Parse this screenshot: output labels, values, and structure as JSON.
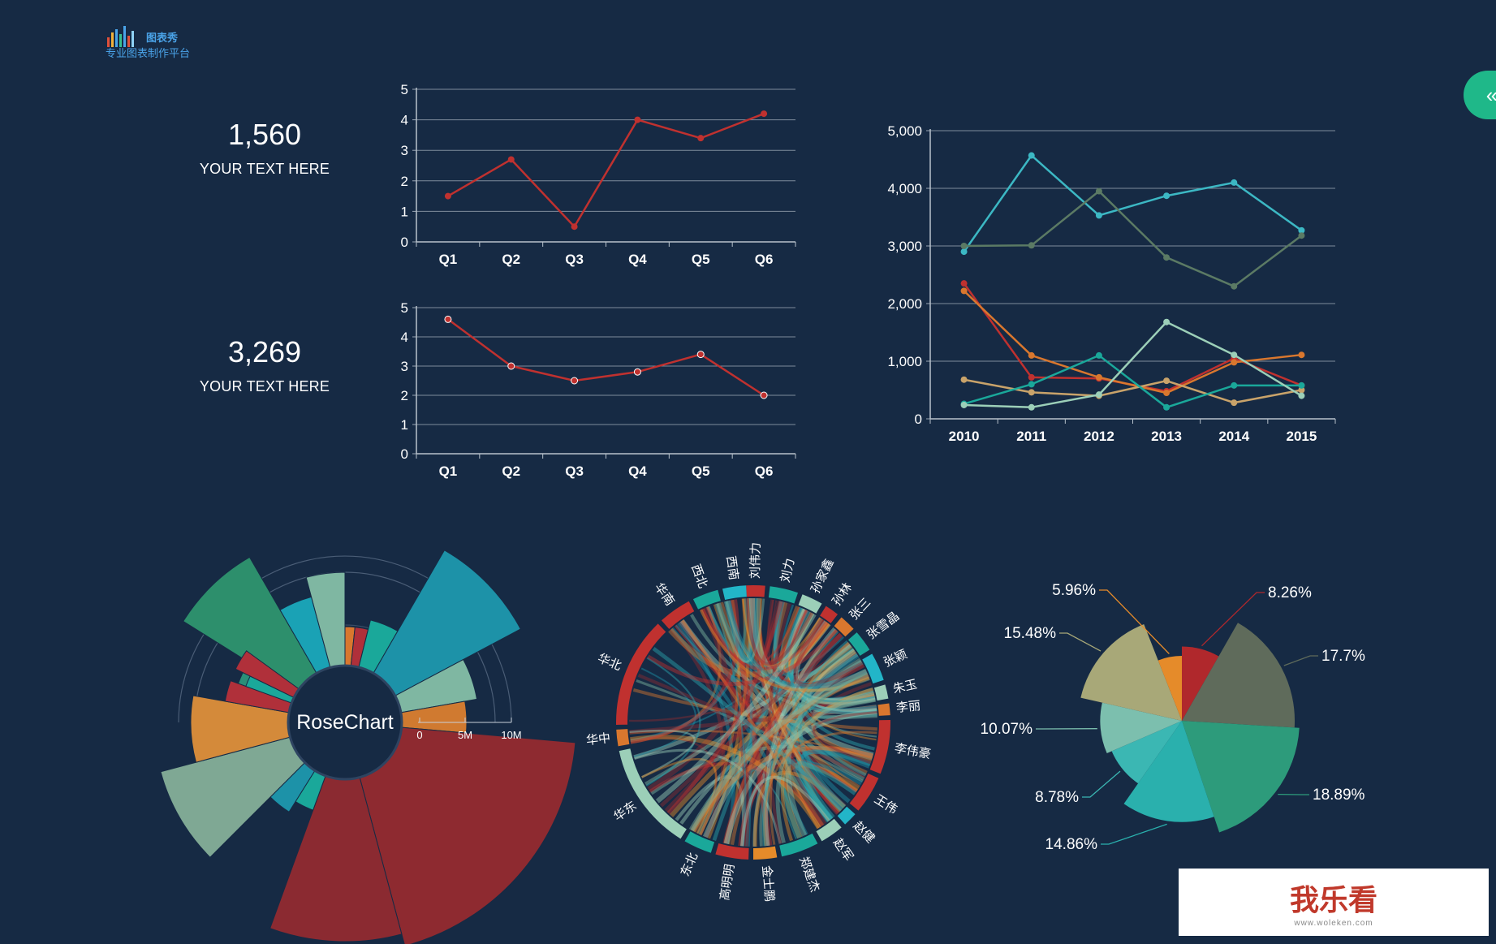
{
  "logo": {
    "line1": "图表秀",
    "line2": "专业图表制作平台"
  },
  "kpis": [
    {
      "value": "1,560",
      "label": "YOUR TEXT HERE"
    },
    {
      "value": "3,269",
      "label": "YOUR TEXT HERE"
    }
  ],
  "collapse_icon": "double-chevron-left-icon",
  "watermark": {
    "text": "我乐看",
    "sub": "www.woleken.com"
  },
  "chart_data": [
    {
      "type": "line",
      "categories": [
        "Q1",
        "Q2",
        "Q3",
        "Q4",
        "Q5",
        "Q6"
      ],
      "series": [
        {
          "values": [
            1.5,
            2.7,
            0.5,
            4.0,
            3.4,
            4.2
          ],
          "color": "#c0312f"
        }
      ],
      "ylim": [
        0,
        5
      ],
      "yticks": [
        0,
        1,
        2,
        3,
        4,
        5
      ],
      "grid": true
    },
    {
      "type": "line",
      "categories": [
        "Q1",
        "Q2",
        "Q3",
        "Q4",
        "Q5",
        "Q6"
      ],
      "series": [
        {
          "values": [
            4.6,
            3.0,
            2.5,
            2.8,
            3.4,
            2.0
          ],
          "color": "#c0312f"
        }
      ],
      "ylim": [
        0,
        5
      ],
      "yticks": [
        0,
        1,
        2,
        3,
        4,
        5
      ],
      "grid": true
    },
    {
      "type": "line",
      "categories": [
        "2010",
        "2011",
        "2012",
        "2013",
        "2014",
        "2015"
      ],
      "ylim": [
        0,
        5000
      ],
      "yticks": [
        0,
        1000,
        2000,
        3000,
        4000,
        5000
      ],
      "ytick_labels": [
        "0",
        "1,000",
        "2,000",
        "3,000",
        "4,000",
        "5,000"
      ],
      "grid": true,
      "series": [
        {
          "values": [
            2900,
            4570,
            3530,
            3870,
            4100,
            3270
          ],
          "color": "#3cb8c4"
        },
        {
          "values": [
            3000,
            3010,
            3950,
            2800,
            2300,
            3180
          ],
          "color": "#5b7a64"
        },
        {
          "values": [
            2350,
            720,
            700,
            480,
            1050,
            580
          ],
          "color": "#c0312f"
        },
        {
          "values": [
            2220,
            1100,
            720,
            450,
            980,
            1110
          ],
          "color": "#d9772e"
        },
        {
          "values": [
            680,
            460,
            400,
            660,
            280,
            500
          ],
          "color": "#c9a36a"
        },
        {
          "values": [
            260,
            600,
            1100,
            200,
            580,
            580
          ],
          "color": "#1aa89a"
        },
        {
          "values": [
            240,
            200,
            420,
            1680,
            1110,
            400
          ],
          "color": "#9ccfb8"
        }
      ]
    },
    {
      "type": "rose",
      "title": "RoseChart",
      "axis_labels": [
        "0",
        "5M",
        "10M"
      ]
    },
    {
      "type": "chord",
      "labels": [
        "刘伟力",
        "刘力",
        "孙家鑫",
        "孙林",
        "张三",
        "张雪晶",
        "张颖",
        "朱玉",
        "李丽",
        "李伟豪",
        "王伟",
        "赵健",
        "赵军",
        "郑建杰",
        "金士鹏",
        "高明明",
        "东北",
        "华东",
        "华中",
        "华北",
        "华南",
        "西北",
        "西南"
      ]
    },
    {
      "type": "pie",
      "slices": [
        {
          "label": "8.26%",
          "value": 8.26,
          "color": "#b0282c"
        },
        {
          "label": "17.7%",
          "value": 17.7,
          "color": "#5f6b5b"
        },
        {
          "label": "18.89%",
          "value": 18.89,
          "color": "#2d9b7b"
        },
        {
          "label": "14.86%",
          "value": 14.86,
          "color": "#2ab0ad"
        },
        {
          "label": "8.78%",
          "value": 8.78,
          "color": "#3bb7b3"
        },
        {
          "label": "10.07%",
          "value": 10.07,
          "color": "#7cbfae"
        },
        {
          "label": "15.48%",
          "value": 15.48,
          "color": "#a8a878"
        },
        {
          "label": "5.96%",
          "value": 5.96,
          "color": "#e58b2a"
        }
      ]
    }
  ]
}
